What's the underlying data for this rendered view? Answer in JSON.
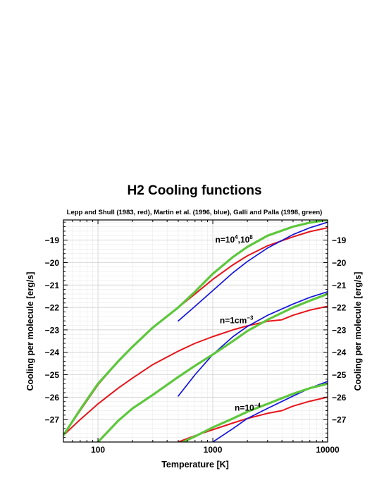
{
  "chart_data": {
    "type": "line",
    "title": "H2 Cooling functions",
    "subtitle": "Lepp and Shull (1983, red), Martin et al. (1996, blue), Galli and Palla (1998, green)",
    "xlabel": "Temperature [K]",
    "ylabel": "Cooling per molecule [erg/s]",
    "xscale": "log",
    "xlim": [
      50,
      10000
    ],
    "ylim": [
      -28,
      -18.1
    ],
    "x_ticks": [
      100,
      1000,
      10000
    ],
    "x_tick_labels": [
      "100",
      "1000",
      "10000"
    ],
    "y_ticks": [
      -27,
      -26,
      -25,
      -24,
      -23,
      -22,
      -21,
      -20,
      -19
    ],
    "y_tick_labels": [
      "−27",
      "−26",
      "−25",
      "−24",
      "−23",
      "−22",
      "−21",
      "−20",
      "−19"
    ],
    "grid": true,
    "colors": {
      "red": "#e8141a",
      "blue": "#1414e0",
      "green": "#5dc73c"
    },
    "annotations": [
      {
        "text": "n=10",
        "sup": "4",
        "text2": ",10",
        "sup2": "8",
        "x": 1050,
        "y": -19.1
      },
      {
        "text": "n=1cm",
        "sup": "−3",
        "text2": "",
        "sup2": "",
        "x": 1150,
        "y": -22.7
      },
      {
        "text": "n=10",
        "sup": "−4",
        "text2": "",
        "sup2": "",
        "x": 1550,
        "y": -26.6
      }
    ],
    "series": [
      {
        "color": "red",
        "x": [
          50,
          70,
          100,
          150,
          200,
          300,
          500,
          700,
          1000,
          1500,
          2000,
          3000,
          5000,
          7000,
          10000
        ],
        "y": [
          -27.7,
          -26.6,
          -25.45,
          -24.4,
          -23.75,
          -22.9,
          -22.0,
          -21.4,
          -20.75,
          -20.1,
          -19.7,
          -19.25,
          -18.85,
          -18.62,
          -18.45
        ]
      },
      {
        "color": "red",
        "x": [
          50,
          70,
          100,
          150,
          200,
          300,
          500,
          700,
          1000,
          1500,
          2000,
          3000,
          4000,
          5000,
          7000,
          10000
        ],
        "y": [
          -27.7,
          -27.0,
          -26.3,
          -25.6,
          -25.15,
          -24.55,
          -23.95,
          -23.6,
          -23.3,
          -23.0,
          -22.82,
          -22.62,
          -22.55,
          -22.35,
          -22.12,
          -21.95
        ]
      },
      {
        "color": "red",
        "x": [
          500,
          700,
          1000,
          1500,
          2000,
          3000,
          4000,
          5000,
          7000,
          10000
        ],
        "y": [
          -28.0,
          -27.72,
          -27.45,
          -27.15,
          -26.95,
          -26.72,
          -26.6,
          -26.4,
          -26.18,
          -26.0
        ]
      },
      {
        "color": "blue",
        "x": [
          500,
          700,
          1000,
          1500,
          2000,
          3000,
          5000,
          7000,
          10000
        ],
        "y": [
          -22.6,
          -21.95,
          -21.25,
          -20.45,
          -19.95,
          -19.35,
          -18.75,
          -18.45,
          -18.2
        ]
      },
      {
        "color": "blue",
        "x": [
          500,
          700,
          1000,
          1500,
          2000,
          3000,
          5000,
          7000,
          10000
        ],
        "y": [
          -25.95,
          -25.0,
          -24.1,
          -23.3,
          -22.85,
          -22.35,
          -21.85,
          -21.55,
          -21.3
        ]
      },
      {
        "color": "blue",
        "x": [
          1000,
          1500,
          2000,
          3000,
          5000,
          7000,
          10000
        ],
        "y": [
          -28.0,
          -27.4,
          -26.95,
          -26.5,
          -25.95,
          -25.6,
          -25.3
        ]
      },
      {
        "color": "green",
        "x": [
          50,
          70,
          100,
          150,
          200,
          300,
          500,
          700,
          1000,
          1500,
          2000,
          3000,
          5000,
          7000,
          10000
        ],
        "y": [
          -27.7,
          -26.55,
          -25.4,
          -24.4,
          -23.75,
          -22.9,
          -22.0,
          -21.3,
          -20.5,
          -19.75,
          -19.3,
          -18.8,
          -18.4,
          -18.22,
          -18.1
        ]
      },
      {
        "color": "green",
        "x": [
          100,
          150,
          200,
          300,
          500,
          700,
          1000,
          1500,
          2000,
          3000,
          5000,
          7000,
          10000
        ],
        "y": [
          -28.0,
          -27.05,
          -26.5,
          -25.9,
          -25.1,
          -24.6,
          -24.1,
          -23.5,
          -23.05,
          -22.55,
          -22.0,
          -21.7,
          -21.4
        ]
      },
      {
        "color": "green",
        "x": [
          500,
          700,
          1000,
          1500,
          2000,
          3000,
          5000,
          7000,
          10000
        ],
        "y": [
          -28.1,
          -27.75,
          -27.35,
          -26.95,
          -26.65,
          -26.3,
          -25.85,
          -25.6,
          -25.4
        ]
      }
    ]
  }
}
